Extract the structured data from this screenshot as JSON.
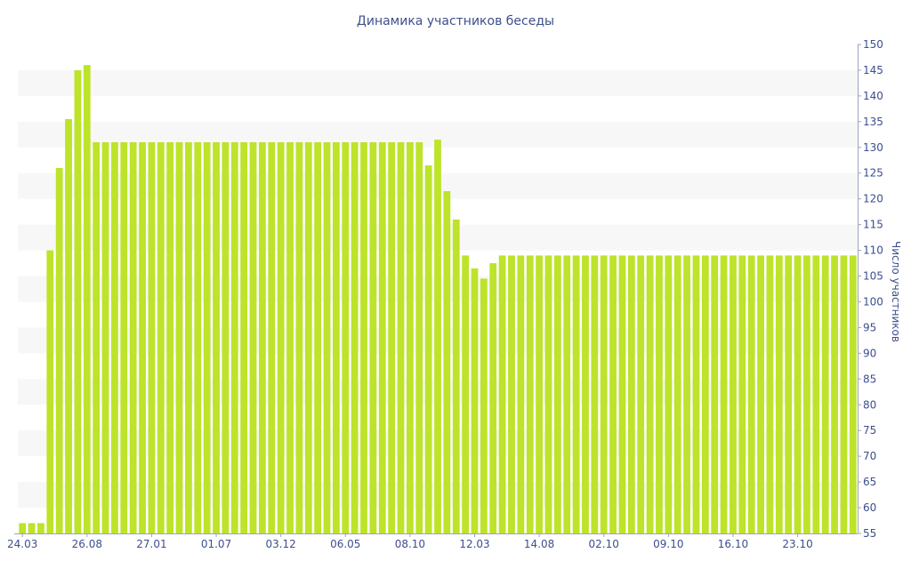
{
  "chart_data": {
    "type": "bar",
    "title": "Динамика участников беседы",
    "ylabel": "Число участников",
    "xlabel": "",
    "ylim": [
      55,
      150
    ],
    "y_ticks": [
      55,
      60,
      65,
      70,
      75,
      80,
      85,
      90,
      95,
      100,
      105,
      110,
      115,
      120,
      125,
      130,
      135,
      140,
      145,
      150
    ],
    "y_axis_side": "right",
    "grid": "alternating horizontal bands",
    "bar_color": "#bde32a",
    "band_color": "#f7f7f7",
    "text_color": "#3d4f8c",
    "x_tick_labels": [
      {
        "index": 0,
        "label": "24.03"
      },
      {
        "index": 7,
        "label": "26.08"
      },
      {
        "index": 14,
        "label": "27.01"
      },
      {
        "index": 21,
        "label": "01.07"
      },
      {
        "index": 28,
        "label": "03.12"
      },
      {
        "index": 35,
        "label": "06.05"
      },
      {
        "index": 42,
        "label": "08.10"
      },
      {
        "index": 49,
        "label": "12.03"
      },
      {
        "index": 56,
        "label": "14.08"
      },
      {
        "index": 63,
        "label": "02.10"
      },
      {
        "index": 70,
        "label": "09.10"
      },
      {
        "index": 77,
        "label": "16.10"
      },
      {
        "index": 84,
        "label": "23.10"
      }
    ],
    "values": [
      57,
      57,
      57,
      110,
      126,
      135.5,
      145,
      146,
      131,
      131,
      131,
      131,
      131,
      131,
      131,
      131,
      131,
      131,
      131,
      131,
      131,
      131,
      131,
      131,
      131,
      131,
      131,
      131,
      131,
      131,
      131,
      131,
      131,
      131,
      131,
      131,
      131,
      131,
      131,
      131,
      131,
      131,
      131,
      131,
      126.5,
      131.5,
      121.5,
      116,
      109,
      106.5,
      104.5,
      107.5,
      109,
      109,
      109,
      109,
      109,
      109,
      109,
      109,
      109,
      109,
      109,
      109,
      109,
      109,
      109,
      109,
      109,
      109,
      109,
      109,
      109,
      109,
      109,
      109,
      109,
      109,
      109,
      109,
      109,
      109,
      109,
      109,
      109,
      109,
      109,
      109,
      109,
      109,
      109
    ]
  }
}
